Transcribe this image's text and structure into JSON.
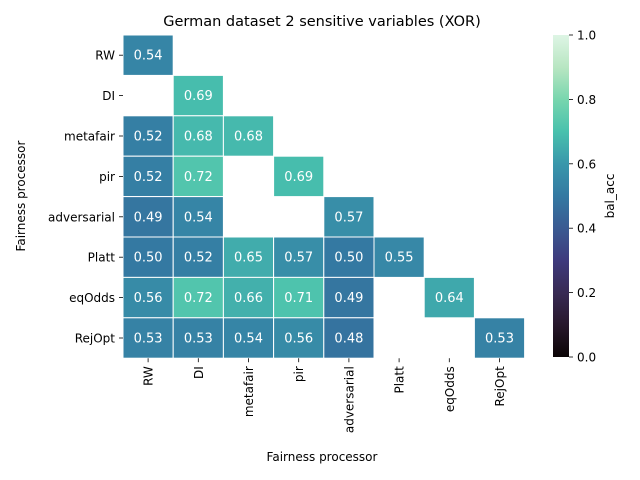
{
  "chart_data": {
    "type": "heatmap",
    "title": "German dataset 2 sensitive variables (XOR)",
    "xlabel": "Fairness processor",
    "ylabel": "Fairness processor",
    "rows": [
      "RW",
      "DI",
      "metafair",
      "pir",
      "adversarial",
      "Platt",
      "eqOdds",
      "RejOpt"
    ],
    "columns": [
      "RW",
      "DI",
      "metafair",
      "pir",
      "adversarial",
      "Platt",
      "eqOdds",
      "RejOpt"
    ],
    "values": [
      [
        0.54,
        null,
        null,
        null,
        null,
        null,
        null,
        null
      ],
      [
        null,
        0.69,
        null,
        null,
        null,
        null,
        null,
        null
      ],
      [
        0.52,
        0.68,
        0.68,
        null,
        null,
        null,
        null,
        null
      ],
      [
        0.52,
        0.72,
        null,
        0.69,
        null,
        null,
        null,
        null
      ],
      [
        0.49,
        0.54,
        null,
        null,
        0.57,
        null,
        null,
        null
      ],
      [
        0.5,
        0.52,
        0.65,
        0.57,
        0.5,
        0.55,
        null,
        null
      ],
      [
        0.56,
        0.72,
        0.66,
        0.71,
        0.49,
        null,
        0.64,
        null
      ],
      [
        0.53,
        0.53,
        0.54,
        0.56,
        0.48,
        null,
        null,
        0.53
      ]
    ],
    "colorbar": {
      "label": "bal_acc",
      "range": [
        0.0,
        1.0
      ],
      "ticks": [
        "0.0",
        "0.2",
        "0.4",
        "0.6",
        "0.8",
        "1.0"
      ],
      "colormap": "mako"
    },
    "grid": false
  }
}
